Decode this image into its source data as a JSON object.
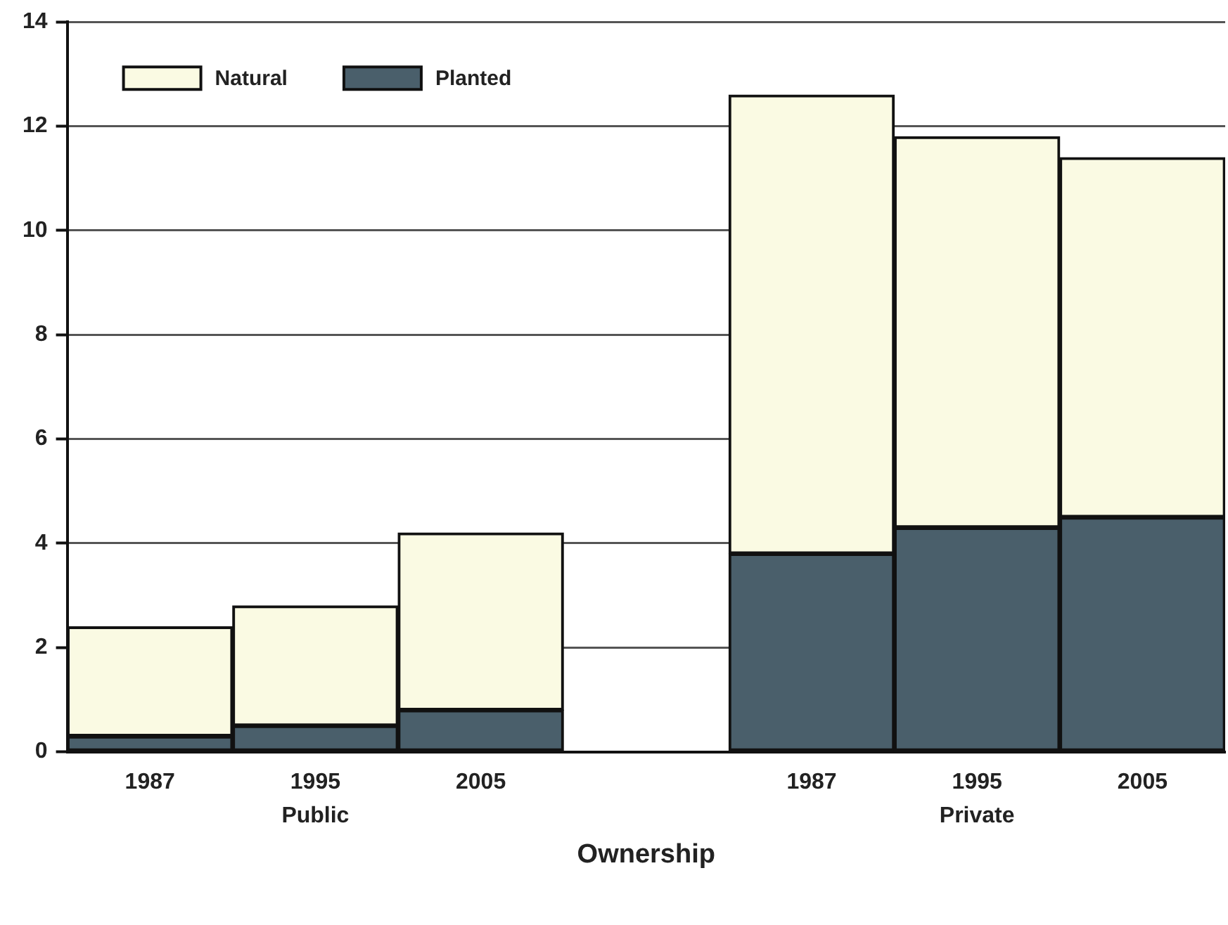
{
  "chart_data": {
    "type": "bar",
    "stacked": true,
    "xlabel": "Ownership",
    "categories": [
      "1987",
      "1995",
      "2005",
      null,
      "1987",
      "1995",
      "2005"
    ],
    "series": [
      {
        "name": "Planted",
        "color": "#4a5f6b",
        "values": [
          0.3,
          0.5,
          0.8,
          null,
          3.8,
          4.3,
          4.5
        ]
      },
      {
        "name": "Natural",
        "color": "#fafae3",
        "values": [
          2.1,
          2.3,
          3.4,
          null,
          8.8,
          7.5,
          6.9
        ]
      }
    ],
    "ylim": [
      0,
      14
    ],
    "yticks": [
      0,
      2,
      4,
      6,
      8,
      10,
      12,
      14
    ],
    "grid": "y",
    "legend": "top left",
    "annotations": [
      "Public",
      "Private"
    ]
  }
}
